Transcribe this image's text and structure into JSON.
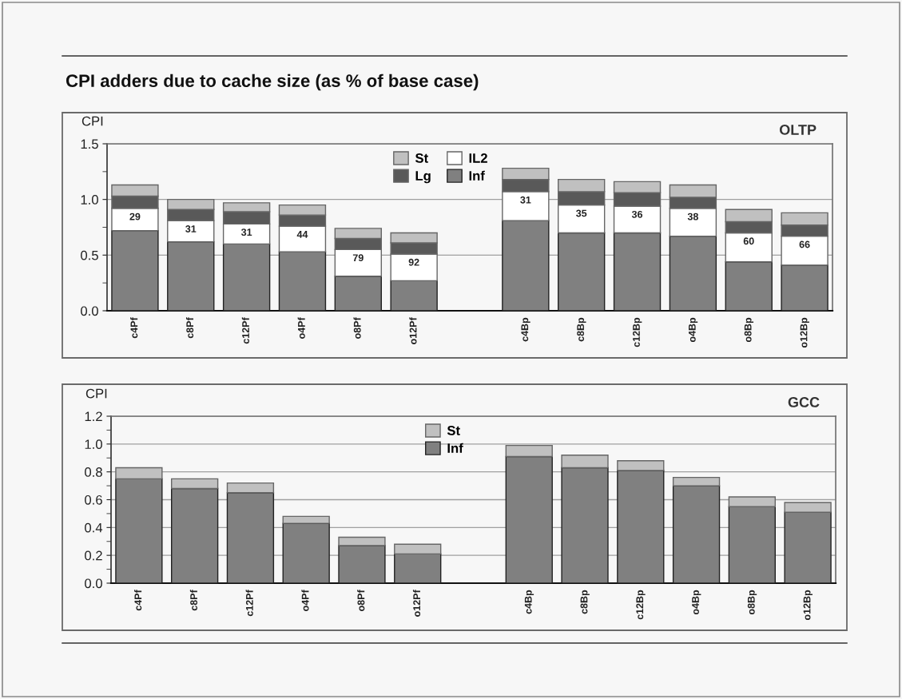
{
  "chart_data": [
    {
      "type": "bar",
      "stacked": true,
      "title": "CPI adders due to cache size (as % of base case)",
      "subtitle": "OLTP",
      "ylabel": "CPI",
      "categories": [
        "c4Pf",
        "c8Pf",
        "c12Pf",
        "o4Pf",
        "o8Pf",
        "o12Pf",
        null,
        "c4Bp",
        "c8Bp",
        "c12Bp",
        "o4Bp",
        "o8Bp",
        "o12Bp"
      ],
      "series": [
        {
          "name": "Inf",
          "color": "#808080",
          "values": [
            0.72,
            0.62,
            0.6,
            0.53,
            0.31,
            0.27,
            null,
            0.81,
            0.7,
            0.7,
            0.67,
            0.44,
            0.41
          ]
        },
        {
          "name": "IL2",
          "color": "#ffffff",
          "values": [
            0.2,
            0.19,
            0.18,
            0.23,
            0.24,
            0.24,
            null,
            0.26,
            0.25,
            0.24,
            0.25,
            0.26,
            0.26
          ]
        },
        {
          "name": "Lg",
          "color": "#595959",
          "values": [
            0.11,
            0.1,
            0.11,
            0.1,
            0.1,
            0.1,
            null,
            0.11,
            0.12,
            0.12,
            0.1,
            0.1,
            0.1
          ]
        },
        {
          "name": "St",
          "color": "#c0c0c0",
          "values": [
            0.1,
            0.09,
            0.08,
            0.09,
            0.09,
            0.09,
            null,
            0.1,
            0.11,
            0.1,
            0.11,
            0.11,
            0.11
          ]
        }
      ],
      "annotations": [
        {
          "text": "29",
          "x": "c4Pf",
          "y": 0.92
        },
        {
          "text": "31",
          "x": "c8Pf",
          "y": 0.81
        },
        {
          "text": "31",
          "x": "c12Pf",
          "y": 0.78
        },
        {
          "text": "44",
          "x": "o4Pf",
          "y": 0.76
        },
        {
          "text": "79",
          "x": "o8Pf",
          "y": 0.55
        },
        {
          "text": "92",
          "x": "o12Pf",
          "y": 0.51
        },
        {
          "text": "31",
          "x": "c4Bp",
          "y": 1.07
        },
        {
          "text": "35",
          "x": "c8Bp",
          "y": 0.95
        },
        {
          "text": "36",
          "x": "c12Bp",
          "y": 0.94
        },
        {
          "text": "38",
          "x": "o4Bp",
          "y": 0.92
        },
        {
          "text": "60",
          "x": "o8Bp",
          "y": 0.7
        },
        {
          "text": "66",
          "x": "o12Bp",
          "y": 0.67
        }
      ],
      "ylim": [
        0,
        1.5
      ],
      "yticks": [
        {
          "value": 0,
          "label": "0.0"
        },
        {
          "value": 0.25,
          "label": null
        },
        0.5,
        {
          "value": 0.75,
          "label": null
        },
        {
          "value": 1,
          "label": "1.0"
        },
        {
          "value": 1.25,
          "label": null
        },
        1.5
      ],
      "grid": "y",
      "legend": "top"
    },
    {
      "type": "bar",
      "stacked": true,
      "subtitle": "GCC",
      "ylabel": "CPI",
      "categories": [
        "c4Pf",
        "c8Pf",
        "c12Pf",
        "o4Pf",
        "o8Pf",
        "o12Pf",
        null,
        "c4Bp",
        "c8Bp",
        "c12Bp",
        "o4Bp",
        "o8Bp",
        "o12Bp"
      ],
      "series": [
        {
          "name": "Inf",
          "color": "#808080",
          "values": [
            0.75,
            0.68,
            0.65,
            0.43,
            0.27,
            0.21,
            null,
            0.91,
            0.83,
            0.81,
            0.7,
            0.55,
            0.51
          ]
        },
        {
          "name": "St",
          "color": "#c0c0c0",
          "values": [
            0.08,
            0.07,
            0.07,
            0.05,
            0.06,
            0.07,
            null,
            0.08,
            0.09,
            0.07,
            0.06,
            0.07,
            0.07
          ]
        }
      ],
      "ylim": [
        0,
        1.2
      ],
      "yticks": [
        {
          "value": 0,
          "label": "0.0"
        },
        {
          "value": 0.1,
          "label": null
        },
        0.2,
        {
          "value": 0.3,
          "label": null
        },
        0.4,
        {
          "value": 0.5,
          "label": null
        },
        0.6,
        {
          "value": 0.7,
          "label": null
        },
        0.8,
        {
          "value": 0.9,
          "label": null
        },
        {
          "value": 1,
          "label": "1.0"
        },
        {
          "value": 1.1,
          "label": null
        },
        1.2
      ],
      "grid": "y",
      "legend": "top"
    }
  ]
}
